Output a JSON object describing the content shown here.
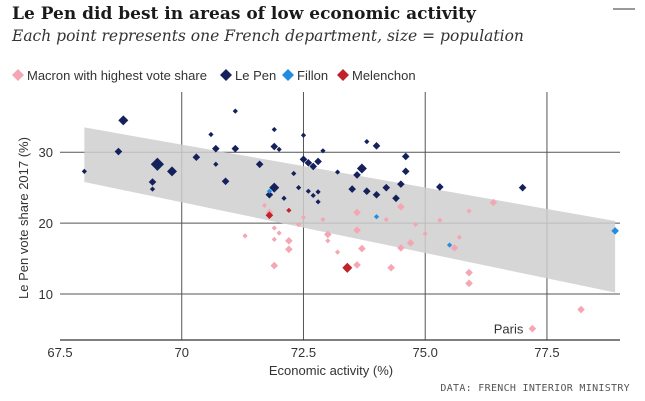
{
  "chart_data": {
    "type": "scatter",
    "title": "Le Pen did best in areas of low economic activity",
    "subtitle": "Each point represents one French department, size = population",
    "xlabel": "Economic activity (%)",
    "ylabel": "Le Pen vote share 2017 (%)",
    "xlim": [
      67.5,
      79.0
    ],
    "ylim": [
      3.5,
      38.5
    ],
    "xticks": [
      67.5,
      70,
      72.5,
      75,
      77.5
    ],
    "xtick_labels": [
      "67.5",
      "70",
      "72.5",
      "75.0",
      "77.5"
    ],
    "yticks": [
      10,
      20,
      30
    ],
    "ytick_labels": [
      "10",
      "20",
      "30"
    ],
    "grid": true,
    "legend_position": "top",
    "source": "DATA: FRENCH INTERIOR MINISTRY",
    "annotations": [
      {
        "text": "Paris",
        "x": 77.2,
        "y": 5.1
      }
    ],
    "trend_band": {
      "x": [
        68.0,
        78.9
      ],
      "upper": [
        33.5,
        20.3
      ],
      "lower": [
        25.8,
        10.2
      ]
    },
    "series": [
      {
        "name": "Macron with highest vote share",
        "color": "#f4a7b3",
        "points": [
          [
            77.2,
            5.1,
            3
          ],
          [
            78.2,
            7.8,
            3
          ],
          [
            75.9,
            11.5,
            3
          ],
          [
            75.9,
            13.0,
            3
          ],
          [
            75.6,
            16.5,
            3
          ],
          [
            75.0,
            18.5,
            2
          ],
          [
            76.4,
            22.9,
            3
          ],
          [
            75.9,
            21.7,
            2
          ],
          [
            75.7,
            18.0,
            2
          ],
          [
            74.7,
            17.2,
            3
          ],
          [
            74.5,
            16.5,
            3
          ],
          [
            74.3,
            13.7,
            3
          ],
          [
            74.5,
            22.3,
            3
          ],
          [
            74.2,
            20.5,
            2
          ],
          [
            73.6,
            14.1,
            3
          ],
          [
            73.7,
            16.4,
            3
          ],
          [
            73.6,
            19.0,
            3
          ],
          [
            73.6,
            21.5,
            3
          ],
          [
            73.4,
            13.5,
            3
          ],
          [
            72.9,
            20.5,
            2
          ],
          [
            73.0,
            18.4,
            3
          ],
          [
            73.0,
            17.5,
            2
          ],
          [
            72.5,
            20.8,
            2
          ],
          [
            72.4,
            19.8,
            2
          ],
          [
            72.2,
            17.5,
            3
          ],
          [
            72.2,
            16.3,
            3
          ],
          [
            71.9,
            17.7,
            2
          ],
          [
            71.9,
            19.3,
            2
          ],
          [
            71.8,
            21.5,
            3
          ],
          [
            71.7,
            22.5,
            2
          ],
          [
            71.9,
            14.0,
            3
          ],
          [
            71.3,
            18.2,
            2
          ],
          [
            72.0,
            18.6,
            2
          ],
          [
            73.2,
            15.9,
            2
          ],
          [
            74.8,
            19.8,
            2
          ],
          [
            75.3,
            20.4,
            2
          ]
        ]
      },
      {
        "name": "Le Pen",
        "color": "#15215b",
        "points": [
          [
            68.0,
            27.3,
            2
          ],
          [
            68.7,
            30.1,
            3
          ],
          [
            68.8,
            34.5,
            4
          ],
          [
            69.4,
            25.8,
            3
          ],
          [
            69.4,
            24.8,
            2
          ],
          [
            69.5,
            28.3,
            5
          ],
          [
            69.8,
            27.3,
            4
          ],
          [
            70.3,
            29.3,
            3
          ],
          [
            70.6,
            32.5,
            2
          ],
          [
            70.7,
            30.5,
            3
          ],
          [
            70.7,
            28.3,
            2
          ],
          [
            70.9,
            25.9,
            3
          ],
          [
            71.1,
            35.8,
            2
          ],
          [
            71.1,
            30.5,
            3
          ],
          [
            71.6,
            28.3,
            3
          ],
          [
            71.8,
            24.0,
            3
          ],
          [
            71.9,
            25.0,
            4
          ],
          [
            71.9,
            30.8,
            3
          ],
          [
            71.9,
            33.2,
            2
          ],
          [
            72.0,
            30.4,
            2
          ],
          [
            72.1,
            23.5,
            2
          ],
          [
            72.3,
            27.0,
            2
          ],
          [
            72.4,
            25.0,
            2
          ],
          [
            72.5,
            32.4,
            2
          ],
          [
            72.6,
            28.5,
            3
          ],
          [
            72.7,
            28.0,
            3
          ],
          [
            72.5,
            29.0,
            3
          ],
          [
            72.8,
            28.7,
            3
          ],
          [
            72.9,
            30.2,
            2
          ],
          [
            72.6,
            24.5,
            2
          ],
          [
            72.7,
            23.9,
            2
          ],
          [
            72.8,
            23.0,
            2
          ],
          [
            72.8,
            24.4,
            2
          ],
          [
            73.2,
            27.2,
            2
          ],
          [
            73.5,
            24.8,
            3
          ],
          [
            73.6,
            26.8,
            3
          ],
          [
            73.7,
            27.7,
            4
          ],
          [
            73.8,
            31.5,
            2
          ],
          [
            73.8,
            24.5,
            3
          ],
          [
            74.0,
            30.9,
            3
          ],
          [
            74.2,
            25.0,
            3
          ],
          [
            74.4,
            23.5,
            3
          ],
          [
            74.5,
            25.5,
            3
          ],
          [
            74.6,
            27.3,
            3
          ],
          [
            74.6,
            29.4,
            3
          ],
          [
            75.3,
            25.1,
            3
          ],
          [
            77.0,
            25.0,
            3
          ],
          [
            74.0,
            24.0,
            3
          ]
        ]
      },
      {
        "name": "Fillon",
        "color": "#1f8ee0",
        "points": [
          [
            78.9,
            18.9,
            3
          ],
          [
            74.0,
            20.9,
            2
          ],
          [
            75.5,
            16.9,
            2
          ],
          [
            71.8,
            24.5,
            2
          ]
        ]
      },
      {
        "name": "Melenchon",
        "color": "#c0222c",
        "points": [
          [
            73.4,
            13.7,
            4
          ],
          [
            71.8,
            21.1,
            3
          ],
          [
            72.2,
            21.8,
            2
          ]
        ]
      }
    ]
  }
}
